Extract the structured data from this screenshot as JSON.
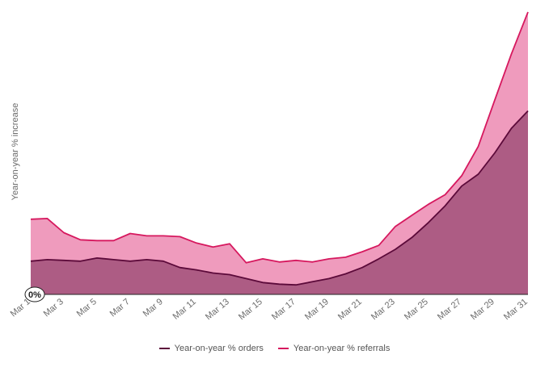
{
  "chart_data": {
    "type": "area",
    "ylabel": "Year-on-year % increase",
    "zero_label": "0%",
    "x": [
      "Mar 1",
      "Mar 2",
      "Mar 3",
      "Mar 4",
      "Mar 5",
      "Mar 6",
      "Mar 7",
      "Mar 8",
      "Mar 9",
      "Mar 10",
      "Mar 11",
      "Mar 12",
      "Mar 13",
      "Mar 14",
      "Mar 15",
      "Mar 16",
      "Mar 17",
      "Mar 18",
      "Mar 19",
      "Mar 20",
      "Mar 21",
      "Mar 22",
      "Mar 23",
      "Mar 24",
      "Mar 25",
      "Mar 26",
      "Mar 27",
      "Mar 28",
      "Mar 29",
      "Mar 30",
      "Mar 31"
    ],
    "tick_labels": [
      "Mar 1",
      "Mar 3",
      "Mar 5",
      "Mar 7",
      "Mar 9",
      "Mar 11",
      "Mar 13",
      "Mar 15",
      "Mar 17",
      "Mar 19",
      "Mar 21",
      "Mar 23",
      "Mar 25",
      "Mar 27",
      "Mar 29",
      "Mar 31"
    ],
    "series": [
      {
        "name": "Year-on-year % orders",
        "color": "#5c0a3a",
        "fill": "#ad5c84",
        "values": [
          42,
          44,
          43,
          42,
          46,
          44,
          42,
          44,
          42,
          34,
          31,
          27,
          25,
          20,
          15,
          13,
          12,
          16,
          20,
          26,
          34,
          45,
          57,
          72,
          91,
          112,
          137,
          152,
          179,
          210,
          232
        ]
      },
      {
        "name": "Year-on-year % referrals",
        "color": "#d6185e",
        "fill": "#ef9bbd",
        "values": [
          95,
          96,
          78,
          69,
          68,
          68,
          77,
          74,
          74,
          73,
          65,
          60,
          64,
          40,
          45,
          41,
          43,
          41,
          45,
          47,
          54,
          62,
          86,
          100,
          114,
          126,
          150,
          187,
          246,
          304,
          357
        ]
      }
    ],
    "ylim": [
      0,
      360
    ],
    "grid": false,
    "legend_position": "bottom-center"
  }
}
